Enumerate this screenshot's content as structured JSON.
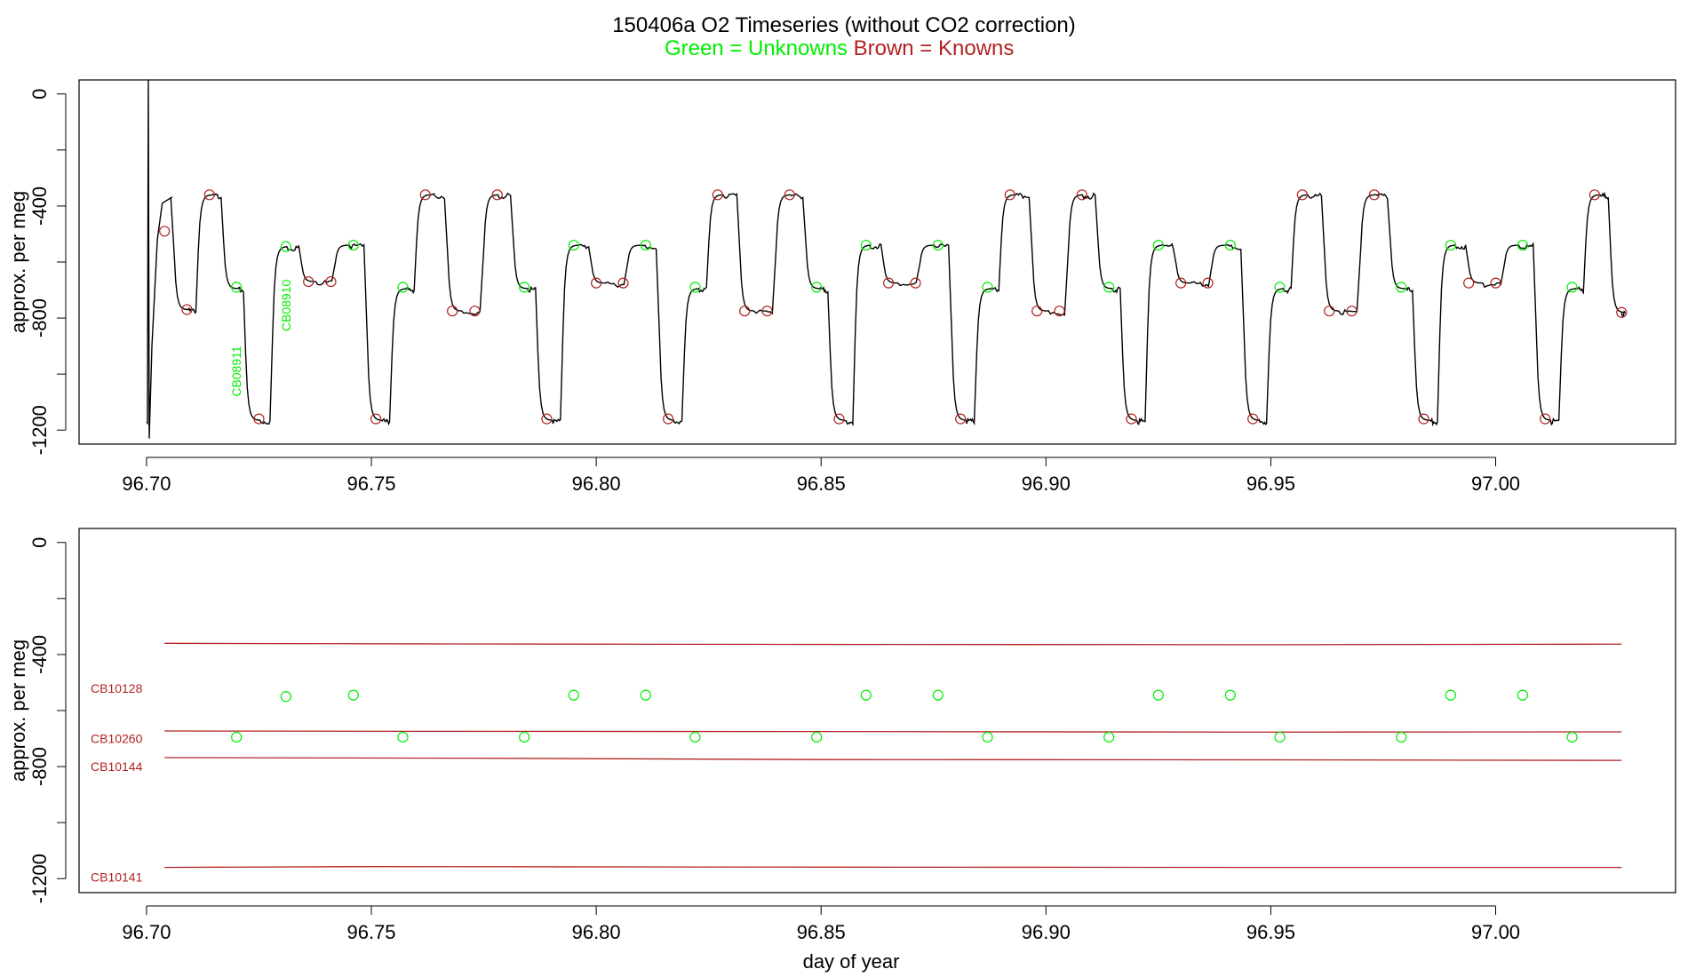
{
  "title": {
    "line1": "150406a   O2 Timeseries (without CO2 correction)",
    "legend_unknowns": "Green = Unknowns",
    "legend_knowns": "Brown = Knowns"
  },
  "colors": {
    "unknowns": "#00ee00",
    "knowns": "#b22222",
    "trace": "#000000"
  },
  "chart_data": [
    {
      "type": "line",
      "ylabel": "approx. per meg",
      "xlim": [
        96.685,
        97.04
      ],
      "ylim": [
        -1250,
        50
      ],
      "xticks": [
        96.7,
        96.75,
        96.8,
        96.85,
        96.9,
        96.95,
        97.0
      ],
      "xtick_labels": [
        "96.70",
        "96.75",
        "96.80",
        "96.85",
        "96.90",
        "96.95",
        "97.00"
      ],
      "yticks": [
        0,
        -400,
        -800,
        -1200
      ],
      "ytick_labels": [
        "0",
        "-400",
        "-800",
        "-1200"
      ],
      "grid": false,
      "trace": {
        "start": 96.7,
        "end": 97.028,
        "settled": [
          [
            96.708,
            -770
          ],
          [
            96.715,
            -360
          ],
          [
            96.719,
            -695
          ],
          [
            96.725,
            -1165
          ],
          [
            96.731,
            -545
          ],
          [
            96.738,
            -670
          ],
          [
            96.746,
            -540
          ],
          [
            96.752,
            -1165
          ],
          [
            96.757,
            -695
          ],
          [
            96.763,
            -360
          ],
          [
            96.771,
            -775
          ],
          [
            96.779,
            -360
          ],
          [
            96.784,
            -695
          ],
          [
            96.79,
            -1165
          ],
          [
            96.795,
            -540
          ],
          [
            96.803,
            -675
          ],
          [
            96.811,
            -540
          ],
          [
            96.817,
            -1165
          ],
          [
            96.822,
            -695
          ],
          [
            96.828,
            -360
          ],
          [
            96.836,
            -775
          ],
          [
            96.844,
            -360
          ],
          [
            96.849,
            -695
          ],
          [
            96.855,
            -1165
          ],
          [
            96.86,
            -540
          ],
          [
            96.868,
            -675
          ],
          [
            96.876,
            -540
          ],
          [
            96.882,
            -1165
          ],
          [
            96.887,
            -695
          ],
          [
            96.893,
            -360
          ],
          [
            96.901,
            -775
          ],
          [
            96.909,
            -360
          ],
          [
            96.914,
            -695
          ],
          [
            96.92,
            -1165
          ],
          [
            96.925,
            -540
          ],
          [
            96.933,
            -675
          ],
          [
            96.941,
            -540
          ],
          [
            96.947,
            -1165
          ],
          [
            96.952,
            -695
          ],
          [
            96.958,
            -360
          ],
          [
            96.966,
            -775
          ],
          [
            96.974,
            -360
          ],
          [
            96.979,
            -695
          ],
          [
            96.985,
            -1165
          ],
          [
            96.99,
            -540
          ],
          [
            96.998,
            -675
          ],
          [
            97.006,
            -540
          ],
          [
            97.012,
            -1165
          ],
          [
            97.017,
            -695
          ],
          [
            97.023,
            -360
          ],
          [
            97.028,
            -780
          ]
        ]
      },
      "knowns_points": [
        [
          96.704,
          -490
        ],
        [
          96.709,
          -770
        ],
        [
          96.714,
          -360
        ],
        [
          96.725,
          -1160
        ],
        [
          96.736,
          -670
        ],
        [
          96.741,
          -670
        ],
        [
          96.751,
          -1160
        ],
        [
          96.762,
          -360
        ],
        [
          96.768,
          -775
        ],
        [
          96.773,
          -775
        ],
        [
          96.778,
          -360
        ],
        [
          96.789,
          -1160
        ],
        [
          96.8,
          -675
        ],
        [
          96.806,
          -675
        ],
        [
          96.816,
          -1160
        ],
        [
          96.827,
          -360
        ],
        [
          96.833,
          -775
        ],
        [
          96.838,
          -775
        ],
        [
          96.843,
          -360
        ],
        [
          96.854,
          -1160
        ],
        [
          96.865,
          -675
        ],
        [
          96.871,
          -675
        ],
        [
          96.881,
          -1160
        ],
        [
          96.892,
          -360
        ],
        [
          96.898,
          -775
        ],
        [
          96.903,
          -775
        ],
        [
          96.908,
          -360
        ],
        [
          96.919,
          -1160
        ],
        [
          96.93,
          -675
        ],
        [
          96.936,
          -675
        ],
        [
          96.946,
          -1160
        ],
        [
          96.957,
          -360
        ],
        [
          96.963,
          -775
        ],
        [
          96.968,
          -775
        ],
        [
          96.973,
          -360
        ],
        [
          96.984,
          -1160
        ],
        [
          96.994,
          -675
        ],
        [
          97.0,
          -675
        ],
        [
          97.011,
          -1160
        ],
        [
          97.022,
          -360
        ],
        [
          97.028,
          -780
        ]
      ],
      "unknowns_points": [
        [
          96.72,
          -690
        ],
        [
          96.731,
          -545
        ],
        [
          96.746,
          -540
        ],
        [
          96.757,
          -690
        ],
        [
          96.784,
          -690
        ],
        [
          96.795,
          -540
        ],
        [
          96.811,
          -540
        ],
        [
          96.822,
          -690
        ],
        [
          96.849,
          -690
        ],
        [
          96.86,
          -540
        ],
        [
          96.876,
          -540
        ],
        [
          96.887,
          -690
        ],
        [
          96.914,
          -690
        ],
        [
          96.925,
          -540
        ],
        [
          96.941,
          -540
        ],
        [
          96.952,
          -690
        ],
        [
          96.979,
          -690
        ],
        [
          96.99,
          -540
        ],
        [
          97.006,
          -540
        ],
        [
          97.017,
          -690
        ]
      ],
      "annotations": [
        {
          "text": "CB08911",
          "x": 96.72,
          "y": -990
        },
        {
          "text": "CB08910",
          "x": 96.731,
          "y": -755
        }
      ]
    },
    {
      "type": "scatter",
      "xlabel": "day of year",
      "ylabel": "approx. per meg",
      "xlim": [
        96.685,
        97.04
      ],
      "ylim": [
        -1250,
        50
      ],
      "xticks": [
        96.7,
        96.75,
        96.8,
        96.85,
        96.9,
        96.95,
        97.0
      ],
      "xtick_labels": [
        "96.70",
        "96.75",
        "96.80",
        "96.85",
        "96.90",
        "96.95",
        "97.00"
      ],
      "yticks": [
        0,
        -400,
        -800,
        -1200
      ],
      "ytick_labels": [
        "0",
        "-400",
        "-800",
        "-1200"
      ],
      "grid": false,
      "reference_lines": [
        {
          "name": "CB10128",
          "x": [
            96.704,
            96.76,
            96.85,
            96.95,
            97.028
          ],
          "y": [
            -360,
            -362,
            -364,
            -365,
            -363
          ]
        },
        {
          "name": "CB10260",
          "x": [
            96.704,
            96.76,
            96.85,
            96.95,
            97.028
          ],
          "y": [
            -673,
            -674,
            -675,
            -677,
            -676
          ]
        },
        {
          "name": "CB10144",
          "x": [
            96.704,
            96.77,
            96.85,
            96.95,
            97.028
          ],
          "y": [
            -768,
            -770,
            -775,
            -776,
            -778
          ]
        },
        {
          "name": "CB10141",
          "x": [
            96.704,
            96.75,
            96.85,
            96.95,
            97.028
          ],
          "y": [
            -1160,
            -1157,
            -1159,
            -1160,
            -1160
          ]
        }
      ],
      "ref_labels": [
        {
          "text": "CB10128",
          "y": -520
        },
        {
          "text": "CB10260",
          "y": -700
        },
        {
          "text": "CB10144",
          "y": -800
        },
        {
          "text": "CB10141",
          "y": -1195
        }
      ],
      "unknowns_points": [
        [
          96.72,
          -695
        ],
        [
          96.731,
          -550
        ],
        [
          96.746,
          -545
        ],
        [
          96.757,
          -695
        ],
        [
          96.784,
          -695
        ],
        [
          96.795,
          -545
        ],
        [
          96.811,
          -545
        ],
        [
          96.822,
          -695
        ],
        [
          96.849,
          -695
        ],
        [
          96.86,
          -545
        ],
        [
          96.876,
          -545
        ],
        [
          96.887,
          -695
        ],
        [
          96.914,
          -695
        ],
        [
          96.925,
          -545
        ],
        [
          96.941,
          -545
        ],
        [
          96.952,
          -695
        ],
        [
          96.979,
          -695
        ],
        [
          96.99,
          -545
        ],
        [
          97.006,
          -545
        ],
        [
          97.017,
          -695
        ]
      ]
    }
  ]
}
